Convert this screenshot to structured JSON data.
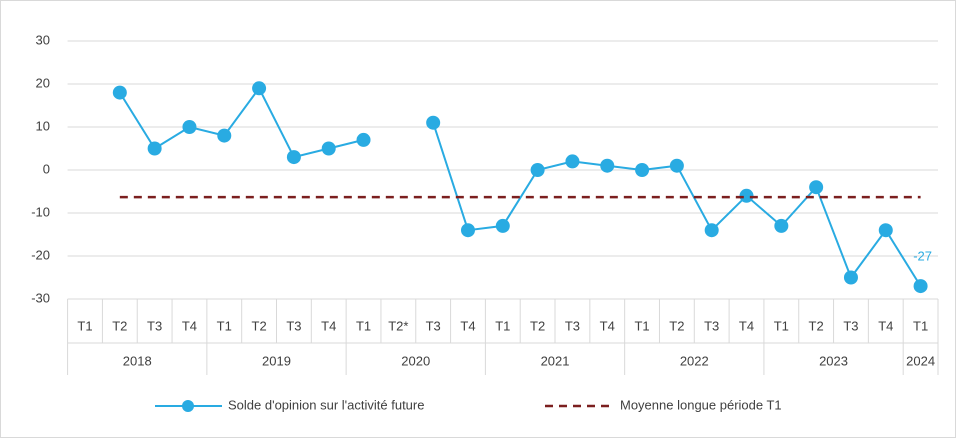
{
  "chart_data": {
    "type": "line",
    "category_groups": [
      {
        "name": "2018",
        "categories": [
          "T1",
          "T2",
          "T3",
          "T4"
        ]
      },
      {
        "name": "2019",
        "categories": [
          "T1",
          "T2",
          "T3",
          "T4"
        ]
      },
      {
        "name": "2020",
        "categories": [
          "T1",
          "T2*",
          "T3",
          "T4"
        ]
      },
      {
        "name": "2021",
        "categories": [
          "T1",
          "T2",
          "T3",
          "T4"
        ]
      },
      {
        "name": "2022",
        "categories": [
          "T1",
          "T2",
          "T3",
          "T4"
        ]
      },
      {
        "name": "2023",
        "categories": [
          "T1",
          "T2",
          "T3",
          "T4"
        ]
      },
      {
        "name": "2024",
        "categories": [
          "T1"
        ]
      }
    ],
    "series": [
      {
        "name": "Solde d'opinion sur l'activité future",
        "color": "#29abe2",
        "marker": "circle",
        "values": [
          null,
          18,
          5,
          10,
          8,
          19,
          3,
          5,
          7,
          null,
          11,
          -14,
          -13,
          0,
          2,
          1,
          0,
          1,
          -14,
          -6,
          -13,
          -4,
          -25,
          -14,
          -27
        ]
      },
      {
        "name": "Moyenne longue période T1",
        "color": "#7b1f1f",
        "dashed": true,
        "values": [
          null,
          -6.3,
          -6.3,
          -6.3,
          -6.3,
          -6.3,
          -6.3,
          -6.3,
          -6.3,
          -6.3,
          -6.3,
          -6.3,
          -6.3,
          -6.3,
          -6.3,
          -6.3,
          -6.3,
          -6.3,
          -6.3,
          -6.3,
          -6.3,
          -6.3,
          -6.3,
          -6.3,
          -6.3
        ]
      }
    ],
    "ylim": [
      -30,
      30
    ],
    "yticks": [
      -30,
      -20,
      -10,
      0,
      10,
      20,
      30
    ],
    "grid": true,
    "legend": "bottom"
  }
}
